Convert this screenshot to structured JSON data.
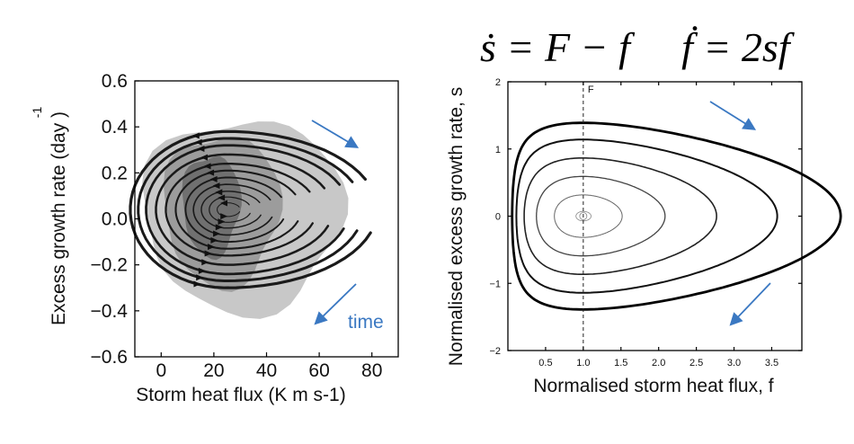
{
  "equation": {
    "line1": "ṡ = F − f",
    "line2": "ḟ = 2sf"
  },
  "left_panel": {
    "time_label": "time",
    "arrow_color": "#3a78c2"
  },
  "right_panel": {
    "f_marker": "F",
    "f_marker_value": 1.0
  },
  "chart_data": [
    {
      "type": "scatter",
      "title": "",
      "xlabel": "Storm heat flux (K m s-1)",
      "ylabel": "Excess growth rate (day )",
      "ylabel_superscript": "-1",
      "xlim": [
        -10,
        90
      ],
      "ylim": [
        -0.6,
        0.6
      ],
      "x_ticks": [
        "0",
        "20",
        "40",
        "60",
        "80"
      ],
      "y_ticks": [
        "0.6",
        "0.4",
        "0.2",
        "0.0",
        "−0.2",
        "−0.4",
        "−0.6"
      ],
      "center": {
        "x": 25,
        "y": 0.04
      },
      "shading": [
        "#c8c8c8",
        "#9c9c9c",
        "#707070"
      ],
      "streamline_color": "#1a1a1a",
      "orbits": [
        {
          "rx": 5,
          "ry": 0.03
        },
        {
          "rx": 9,
          "ry": 0.055
        },
        {
          "rx": 13,
          "ry": 0.08
        },
        {
          "rx": 17,
          "ry": 0.11
        },
        {
          "rx": 21,
          "ry": 0.14
        },
        {
          "rx": 26,
          "ry": 0.17
        },
        {
          "rx": 31,
          "ry": 0.2
        },
        {
          "rx": 36,
          "ry": 0.24
        },
        {
          "rx": 41,
          "ry": 0.28
        },
        {
          "rx": 45,
          "ry": 0.31
        },
        {
          "rx": 49,
          "ry": 0.34
        }
      ]
    },
    {
      "type": "line",
      "title": "",
      "xlabel": "Normalised storm heat flux, f",
      "ylabel": "Normalised excess growth rate, s",
      "xlim": [
        0,
        3.9
      ],
      "ylim": [
        -2,
        2
      ],
      "x_ticks": [
        "0.5",
        "1.0",
        "1.5",
        "2.0",
        "2.5",
        "3.0",
        "3.5"
      ],
      "y_ticks": [
        "2",
        "1",
        "0",
        "−1",
        "−2"
      ],
      "F": 1.0,
      "contours": [
        {
          "C": 1.005,
          "width": 0.8,
          "color": "#888888"
        },
        {
          "C": 1.1,
          "width": 1.0,
          "color": "#666666"
        },
        {
          "C": 1.35,
          "width": 1.3,
          "color": "#444444"
        },
        {
          "C": 1.75,
          "width": 1.6,
          "color": "#222222"
        },
        {
          "C": 2.3,
          "width": 2.0,
          "color": "#111111"
        },
        {
          "C": 2.93,
          "width": 2.8,
          "color": "#000000"
        }
      ]
    }
  ]
}
